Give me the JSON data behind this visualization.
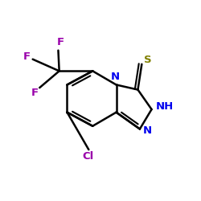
{
  "background_color": "#ffffff",
  "bond_color": "#000000",
  "atom_colors": {
    "N": "#0000ee",
    "S": "#808000",
    "Cl": "#9900aa",
    "F": "#9900aa",
    "C": "#000000"
  },
  "fig_width": 2.5,
  "fig_height": 2.5,
  "dpi": 100
}
